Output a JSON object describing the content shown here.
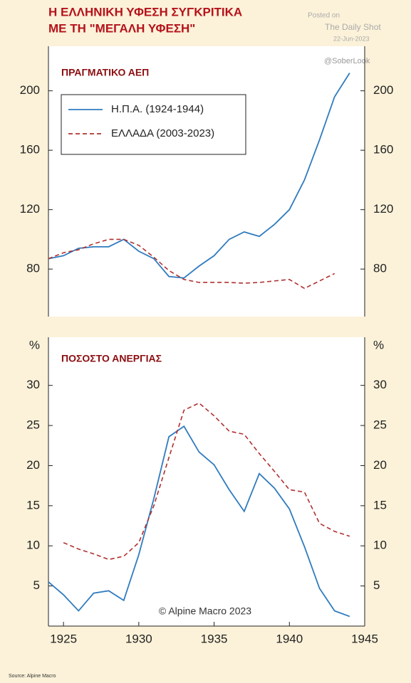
{
  "header": {
    "title_lines": [
      "Η ΕΛΛΗΝΙΚΗ ΥΦΕΣΗ ΣΥΓΚΡΙΤΙΚΑ",
      "ΜΕ ΤΗ \"ΜΕΓΑΛΗ ΥΦΕΣΗ\""
    ],
    "posted": "Posted on",
    "publisher": "The Daily Shot",
    "date": "22-Jun-2023",
    "handle": "@SoberLook"
  },
  "footer": {
    "source": "Source: Alpine Macro"
  },
  "chart_data": [
    {
      "type": "line",
      "title": "ΠΡΑΓΜΑΤΙΚΟ ΑΕΠ",
      "legend": "upper left",
      "x": [
        1924,
        1925,
        1926,
        1927,
        1928,
        1929,
        1930,
        1931,
        1932,
        1933,
        1934,
        1935,
        1936,
        1937,
        1938,
        1939,
        1940,
        1941,
        1942,
        1943,
        1944
      ],
      "xlim": [
        1924,
        1945
      ],
      "ylim": [
        48,
        230
      ],
      "yticks": [
        80,
        120,
        160,
        200
      ],
      "series": [
        {
          "name": "Η.Π.Α. (1924-1944)",
          "color": "#2f7bbf",
          "style": "solid",
          "values": [
            87,
            89,
            94,
            95,
            95,
            100,
            92,
            87,
            75,
            74,
            82,
            89,
            100,
            105,
            102,
            110,
            120,
            140,
            167,
            196,
            212
          ]
        },
        {
          "name": "ΕΛΛΑΔΑ (2003-2023)",
          "color": "#b03030",
          "style": "dashed",
          "values": [
            87,
            91,
            93,
            97,
            100,
            100,
            96,
            88,
            79,
            73,
            71,
            71,
            71,
            70.5,
            71,
            72,
            73,
            67,
            72,
            77,
            null
          ]
        }
      ]
    },
    {
      "type": "line",
      "title": "ΠΟΣΟΣΤΟ ΑΝΕΡΓΙΑΣ",
      "y_unit": "%",
      "annotation": "© Alpine Macro 2023",
      "x": [
        1924,
        1925,
        1926,
        1927,
        1928,
        1929,
        1930,
        1931,
        1932,
        1933,
        1934,
        1935,
        1936,
        1937,
        1938,
        1939,
        1940,
        1941,
        1942,
        1943,
        1944
      ],
      "xlim": [
        1924,
        1945
      ],
      "ylim": [
        0,
        36
      ],
      "yticks": [
        5,
        10,
        15,
        20,
        25,
        30
      ],
      "xticks": [
        1925,
        1930,
        1935,
        1940,
        1945
      ],
      "series": [
        {
          "color": "#2f7bbf",
          "style": "solid",
          "values": [
            5.5,
            3.9,
            1.9,
            4.1,
            4.4,
            3.2,
            8.9,
            15.9,
            23.6,
            24.9,
            21.7,
            20.1,
            17.0,
            14.3,
            19.0,
            17.2,
            14.6,
            9.9,
            4.7,
            1.9,
            1.2
          ]
        },
        {
          "color": "#b03030",
          "style": "dashed",
          "values": [
            null,
            10.4,
            9.6,
            9.0,
            8.3,
            8.7,
            10.4,
            15.0,
            21.0,
            26.9,
            27.8,
            26.2,
            24.3,
            23.9,
            21.5,
            19.3,
            17.0,
            16.7,
            12.8,
            11.8,
            11.2
          ]
        }
      ]
    }
  ]
}
